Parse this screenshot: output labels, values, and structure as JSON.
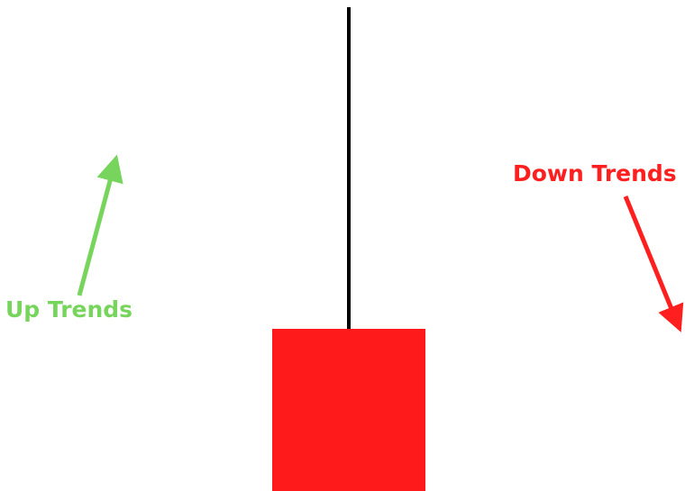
{
  "labels": {
    "up": "Up Trends",
    "down": "Down Trends"
  },
  "colors": {
    "up": "#77d45c",
    "down": "#ff1f1f",
    "candle_body": "#fe1a1b",
    "wick": "#000000",
    "background": "#ffffff"
  }
}
